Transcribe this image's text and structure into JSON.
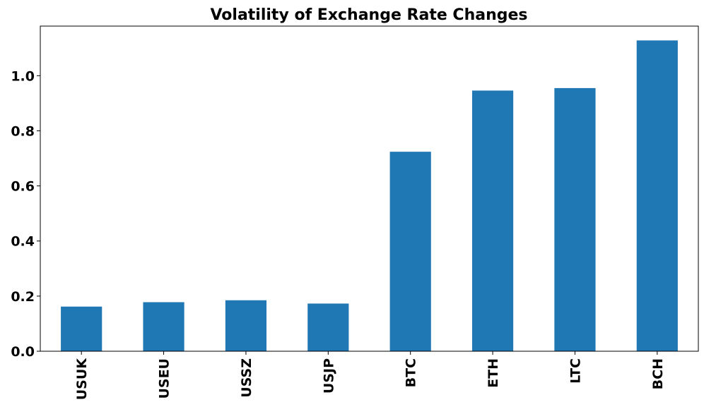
{
  "chart_data": {
    "type": "bar",
    "title": "Volatility of Exchange Rate Changes",
    "xlabel": "",
    "ylabel": "",
    "categories": [
      "USUK",
      "USEU",
      "USSZ",
      "USJP",
      "BTC",
      "ETH",
      "LTC",
      "BCH"
    ],
    "values": [
      0.162,
      0.178,
      0.185,
      0.173,
      0.724,
      0.946,
      0.955,
      1.128
    ],
    "ylim": [
      0,
      1.18
    ],
    "yticks": [
      0.0,
      0.2,
      0.4,
      0.6,
      0.8,
      1.0
    ],
    "ytick_labels": [
      "0.0",
      "0.2",
      "0.4",
      "0.6",
      "0.8",
      "1.0"
    ],
    "grid": false,
    "legend": "none",
    "bar_color": "#1f77b4"
  }
}
